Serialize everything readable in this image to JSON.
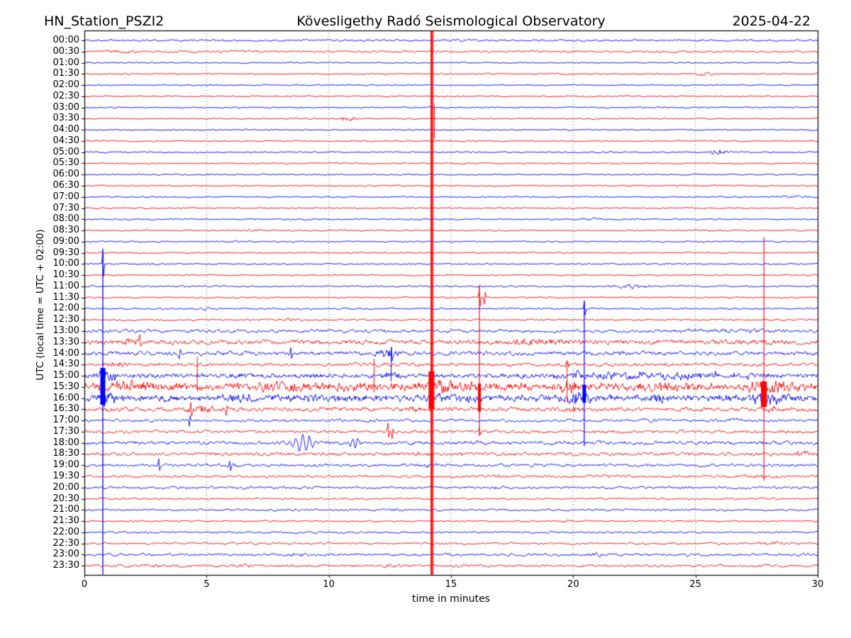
{
  "chart_data": {
    "type": "line",
    "subtype": "helicorder_day_plot_seismogram",
    "title_left": "HN_Station_PSZI2",
    "title_center": "Kövesligethy Radó Seismological Observatory",
    "title_right": "2025-04-22",
    "xlabel": "time in minutes",
    "ylabel": "UTC (local time = UTC + 02:00)",
    "x_range": [
      0,
      30
    ],
    "x_ticks": [
      0,
      5,
      10,
      15,
      20,
      25,
      30
    ],
    "x_gridlines": [
      5,
      10,
      15,
      20,
      25
    ],
    "minutes_per_row": 30,
    "grid_on": true,
    "legend": null,
    "colors": {
      "blue_trace": "#0000ff",
      "red_trace": "#ff0000",
      "grid": "#444444",
      "frame": "#000000",
      "background": "#ffffff"
    },
    "rows": [
      {
        "label": "00:00",
        "color": "blue",
        "amp": 1.3,
        "bursts": [
          [
            14.6,
            16.6,
            1.9
          ],
          [
            19.0,
            20.2,
            1.7
          ],
          [
            24.8,
            25.6,
            1.5
          ]
        ]
      },
      {
        "label": "00:30",
        "color": "red",
        "amp": 1.3,
        "bursts": [
          [
            0.2,
            2.6,
            2.6
          ],
          [
            4.0,
            9.0,
            1.8
          ],
          [
            11.0,
            13.0,
            1.5
          ]
        ]
      },
      {
        "label": "01:00",
        "color": "blue",
        "amp": 0.9,
        "bursts": [
          [
            8.0,
            9.0,
            1.2
          ]
        ]
      },
      {
        "label": "01:30",
        "color": "red",
        "amp": 0.9,
        "bursts": [
          [
            24.7,
            25.9,
            2.3
          ],
          [
            8.4,
            8.9,
            1.3
          ]
        ]
      },
      {
        "label": "02:00",
        "color": "blue",
        "amp": 0.8
      },
      {
        "label": "02:30",
        "color": "red",
        "amp": 0.9
      },
      {
        "label": "03:00",
        "color": "blue",
        "amp": 0.8,
        "bursts": [
          [
            21.0,
            22.0,
            1.1
          ]
        ]
      },
      {
        "label": "03:30",
        "color": "red",
        "amp": 0.9,
        "bursts": [
          [
            10.4,
            11.2,
            3.6
          ],
          [
            24.8,
            25.4,
            1.4
          ]
        ]
      },
      {
        "label": "04:00",
        "color": "blue",
        "amp": 0.8,
        "bursts": [
          [
            17.4,
            18.2,
            1.7
          ],
          [
            5.3,
            5.8,
            1.2
          ]
        ]
      },
      {
        "label": "04:30",
        "color": "red",
        "amp": 0.9,
        "bursts": [
          [
            24.9,
            25.5,
            1.3
          ]
        ]
      },
      {
        "label": "05:00",
        "color": "blue",
        "amp": 0.9,
        "bursts": [
          [
            25.5,
            26.4,
            4.2
          ],
          [
            4.0,
            4.8,
            1.6
          ],
          [
            13.5,
            14.0,
            1.2
          ]
        ]
      },
      {
        "label": "05:30",
        "color": "red",
        "amp": 0.9
      },
      {
        "label": "06:00",
        "color": "blue",
        "amp": 0.9,
        "bursts": [
          [
            4.8,
            5.5,
            1.7
          ],
          [
            9.2,
            10.0,
            1.7
          ],
          [
            13.7,
            14.4,
            1.5
          ]
        ]
      },
      {
        "label": "06:30",
        "color": "red",
        "amp": 0.9
      },
      {
        "label": "07:00",
        "color": "blue",
        "amp": 0.9,
        "bursts": [
          [
            28.2,
            30.0,
            1.9
          ],
          [
            20.2,
            20.8,
            1.3
          ]
        ]
      },
      {
        "label": "07:30",
        "color": "red",
        "amp": 0.9,
        "bursts": [
          [
            25.3,
            25.9,
            1.3
          ]
        ]
      },
      {
        "label": "08:00",
        "color": "blue",
        "amp": 0.9,
        "bursts": [
          [
            20.1,
            21.0,
            2.6
          ]
        ]
      },
      {
        "label": "08:30",
        "color": "red",
        "amp": 1.0,
        "bursts": [
          [
            6.4,
            7.3,
            2.3
          ],
          [
            25.3,
            26.2,
            1.9
          ]
        ]
      },
      {
        "label": "09:00",
        "color": "blue",
        "amp": 0.9,
        "bursts": [
          [
            5.6,
            6.4,
            1.9
          ],
          [
            21.1,
            21.9,
            1.7
          ]
        ]
      },
      {
        "label": "09:30",
        "color": "red",
        "amp": 0.9
      },
      {
        "label": "10:00",
        "color": "blue",
        "amp": 0.9,
        "bursts": [
          [
            2.5,
            3.2,
            2.0
          ]
        ],
        "spikes": [
          [
            0.754,
            22
          ]
        ]
      },
      {
        "label": "10:30",
        "color": "red",
        "amp": 0.9,
        "bursts": [
          [
            8.6,
            9.1,
            1.3
          ]
        ]
      },
      {
        "label": "11:00",
        "color": "blue",
        "amp": 1.1,
        "bursts": [
          [
            21.2,
            23.4,
            2.9
          ],
          [
            25.7,
            26.6,
            1.6
          ]
        ]
      },
      {
        "label": "11:30",
        "color": "red",
        "amp": 0.9,
        "spikes": [
          [
            16.16,
            17
          ],
          [
            16.35,
            -9
          ]
        ]
      },
      {
        "label": "12:00",
        "color": "blue",
        "amp": 1.1,
        "bursts": [
          [
            4.6,
            5.3,
            1.9
          ],
          [
            12.2,
            13.0,
            1.7
          ]
        ],
        "spikes": [
          [
            20.45,
            12
          ]
        ]
      },
      {
        "label": "12:30",
        "color": "red",
        "amp": 1.1,
        "bursts": [
          [
            7.2,
            9.3,
            2.1
          ],
          [
            13.5,
            14.2,
            1.6
          ]
        ]
      },
      {
        "label": "13:00",
        "color": "blue",
        "amp": 2.0,
        "bursts": [
          [
            22.4,
            30.0,
            3.0
          ],
          [
            11.8,
            12.7,
            2.6
          ],
          [
            17.6,
            18.4,
            2.4
          ]
        ]
      },
      {
        "label": "13:30",
        "color": "red",
        "amp": 3.0,
        "bursts": [
          [
            0.4,
            3.0,
            4.0
          ],
          [
            16.8,
            20.4,
            4.6
          ],
          [
            25.4,
            30.0,
            3.6
          ],
          [
            8.0,
            9.5,
            3.4
          ]
        ],
        "spikes": [
          [
            2.25,
            9
          ]
        ]
      },
      {
        "label": "14:00",
        "color": "blue",
        "amp": 2.6,
        "bursts": [
          [
            11.4,
            13.3,
            5.0
          ],
          [
            6.4,
            7.6,
            3.4
          ],
          [
            21.5,
            22.5,
            3.2
          ]
        ],
        "spikes": [
          [
            8.45,
            9
          ],
          [
            12.55,
            10
          ],
          [
            3.9,
            -8
          ]
        ]
      },
      {
        "label": "14:30",
        "color": "red",
        "amp": 2.1,
        "bursts": [
          [
            0.3,
            2.3,
            3.6
          ],
          [
            19.3,
            20.3,
            3.6
          ],
          [
            11.7,
            12.7,
            3.0
          ],
          [
            23.5,
            24.2,
            2.6
          ]
        ]
      },
      {
        "label": "15:00",
        "color": "blue",
        "amp": 3.2,
        "bursts": [
          [
            17.2,
            30.0,
            5.5
          ],
          [
            0.5,
            1.4,
            9.0
          ],
          [
            5.4,
            7.2,
            4.5
          ],
          [
            11.4,
            13.6,
            5.0
          ],
          [
            19.6,
            20.9,
            6.5
          ]
        ]
      },
      {
        "label": "15:30",
        "color": "red",
        "amp": 5.0,
        "bursts": [
          [
            0.3,
            3.7,
            8.0
          ],
          [
            5.9,
            10.6,
            7.0
          ],
          [
            12.9,
            17.1,
            8.0
          ],
          [
            19.2,
            20.8,
            9.0
          ],
          [
            22.7,
            24.7,
            7.0
          ],
          [
            26.2,
            30.0,
            8.0
          ]
        ]
      },
      {
        "label": "16:00",
        "color": "blue",
        "amp": 4.2,
        "bursts": [
          [
            0.4,
            1.5,
            12.0
          ],
          [
            5.4,
            7.6,
            6.0
          ],
          [
            13.7,
            16.9,
            6.5
          ],
          [
            19.5,
            20.9,
            10.0
          ],
          [
            22.9,
            24.2,
            6.0
          ],
          [
            26.9,
            29.1,
            9.0
          ]
        ]
      },
      {
        "label": "16:30",
        "color": "red",
        "amp": 2.6,
        "bursts": [
          [
            3.7,
            6.0,
            5.0
          ],
          [
            12.9,
            14.3,
            4.0
          ],
          [
            19.4,
            20.7,
            4.5
          ],
          [
            27.4,
            28.5,
            4.2
          ],
          [
            9.0,
            10.0,
            3.2
          ]
        ],
        "spikes": [
          [
            4.35,
            11
          ],
          [
            5.8,
            -9
          ]
        ]
      },
      {
        "label": "17:00",
        "color": "blue",
        "amp": 1.7,
        "bursts": [
          [
            11.2,
            12.3,
            2.5
          ],
          [
            22.3,
            24.3,
            2.5
          ],
          [
            25.9,
            27.1,
            2.2
          ],
          [
            5.5,
            6.2,
            2.0
          ]
        ],
        "spikes": [
          [
            4.3,
            -9
          ]
        ]
      },
      {
        "label": "17:30",
        "color": "red",
        "amp": 1.9,
        "bursts": [
          [
            20.7,
            22.3,
            2.6
          ],
          [
            27.0,
            28.0,
            2.2
          ]
        ],
        "spikes": [
          [
            12.42,
            12
          ],
          [
            12.6,
            -8
          ],
          [
            16.16,
            6
          ]
        ]
      },
      {
        "label": "18:00",
        "color": "blue",
        "amp": 2.2,
        "bursts": [
          [
            2.0,
            3.1,
            2.8
          ],
          [
            15.4,
            17.1,
            2.8
          ],
          [
            20.9,
            22.6,
            2.6
          ],
          [
            27.0,
            28.4,
            2.4
          ]
        ],
        "packets": [
          [
            8.3,
            9.6,
            11,
            0.28
          ],
          [
            10.7,
            11.4,
            6,
            0.22
          ]
        ]
      },
      {
        "label": "18:30",
        "color": "red",
        "amp": 2.2,
        "bursts": [
          [
            12.8,
            14.7,
            3.4
          ],
          [
            6.4,
            7.6,
            2.6
          ],
          [
            28.7,
            30.0,
            4.2
          ],
          [
            17.5,
            18.5,
            2.6
          ]
        ]
      },
      {
        "label": "19:00",
        "color": "blue",
        "amp": 1.9,
        "bursts": [
          [
            5.5,
            6.6,
            3.0
          ],
          [
            13.3,
            15.1,
            2.8
          ],
          [
            17.5,
            18.2,
            2.2
          ]
        ],
        "spikes": [
          [
            3.05,
            10
          ],
          [
            5.95,
            8
          ]
        ]
      },
      {
        "label": "19:30",
        "color": "red",
        "amp": 1.6,
        "bursts": [
          [
            15.8,
            18.1,
            2.4
          ],
          [
            20.7,
            22.1,
            2.2
          ],
          [
            26.7,
            29.1,
            2.4
          ]
        ]
      },
      {
        "label": "20:00",
        "color": "blue",
        "amp": 1.6,
        "bursts": [
          [
            6.1,
            7.2,
            2.4
          ],
          [
            16.3,
            17.7,
            2.2
          ],
          [
            24.1,
            25.1,
            2.7
          ],
          [
            11.5,
            12.3,
            2.0
          ]
        ]
      },
      {
        "label": "20:30",
        "color": "red",
        "amp": 1.3,
        "bursts": [
          [
            0.2,
            1.2,
            1.8
          ]
        ]
      },
      {
        "label": "21:00",
        "color": "blue",
        "amp": 1.3,
        "bursts": [
          [
            12.2,
            13.2,
            2.3
          ],
          [
            7.7,
            8.4,
            1.7
          ]
        ]
      },
      {
        "label": "21:30",
        "color": "red",
        "amp": 1.1,
        "bursts": [
          [
            19.2,
            20.2,
            1.9
          ],
          [
            24.3,
            25.3,
            1.9
          ]
        ]
      },
      {
        "label": "22:00",
        "color": "blue",
        "amp": 1.3,
        "bursts": [
          [
            9.5,
            10.3,
            1.7
          ]
        ]
      },
      {
        "label": "22:30",
        "color": "red",
        "amp": 1.3,
        "bursts": [
          [
            27.2,
            29.3,
            2.7
          ],
          [
            13.4,
            14.3,
            1.7
          ]
        ]
      },
      {
        "label": "23:00",
        "color": "blue",
        "amp": 1.7,
        "bursts": [
          [
            7.7,
            9.7,
            2.7
          ],
          [
            14.3,
            15.7,
            2.2
          ],
          [
            20.2,
            21.7,
            2.9
          ]
        ]
      },
      {
        "label": "23:30",
        "color": "red",
        "amp": 1.7,
        "bursts": [
          [
            5.7,
            7.3,
            2.7
          ],
          [
            11.7,
            13.3,
            2.4
          ],
          [
            2.5,
            3.4,
            2.2
          ]
        ]
      }
    ],
    "vertical_events": [
      {
        "x_min": 14.2,
        "color": "red",
        "y1_row": -0.9,
        "y2_row": 47.8,
        "width": 2.6,
        "extra_lines": [
          {
            "dx": 2.2,
            "y1_row": -0.9,
            "y2_row": 47.8,
            "width": 1.0
          },
          {
            "dx": 4.0,
            "y1_row": 5.8,
            "y2_row": 8.8,
            "width": 1.0
          }
        ],
        "blobs": [
          [
            29.6,
            33.0,
            8
          ]
        ]
      },
      {
        "x_min": 0.754,
        "color": "blue",
        "y1_row": 19.0,
        "y2_row": 47.8,
        "width": 1.3,
        "blobs": [
          [
            29.3,
            32.6,
            7
          ]
        ]
      },
      {
        "x_min": 16.16,
        "color": "red",
        "y1_row": 22.6,
        "y2_row": 35.4,
        "width": 1.2,
        "blobs": [
          [
            30.7,
            33.2,
            4
          ]
        ]
      },
      {
        "x_min": 20.45,
        "color": "blue",
        "y1_row": 23.5,
        "y2_row": 36.3,
        "width": 1.2,
        "blobs": [
          [
            30.8,
            32.4,
            5
          ]
        ]
      },
      {
        "x_min": 27.8,
        "color": "red",
        "y1_row": 17.6,
        "y2_row": 39.4,
        "width": 1.1,
        "blobs": [
          [
            30.5,
            32.8,
            8
          ]
        ]
      },
      {
        "x_min": 4.62,
        "color": "red",
        "y1_row": 28.3,
        "y2_row": 31.4,
        "width": 1.0
      },
      {
        "x_min": 11.85,
        "color": "red",
        "y1_row": 28.5,
        "y2_row": 31.5,
        "width": 1.0
      },
      {
        "x_min": 12.55,
        "color": "blue",
        "y1_row": 27.6,
        "y2_row": 30.5,
        "width": 1.0
      },
      {
        "x_min": 19.75,
        "color": "red",
        "y1_row": 28.6,
        "y2_row": 32.4,
        "width": 1.0
      }
    ]
  }
}
